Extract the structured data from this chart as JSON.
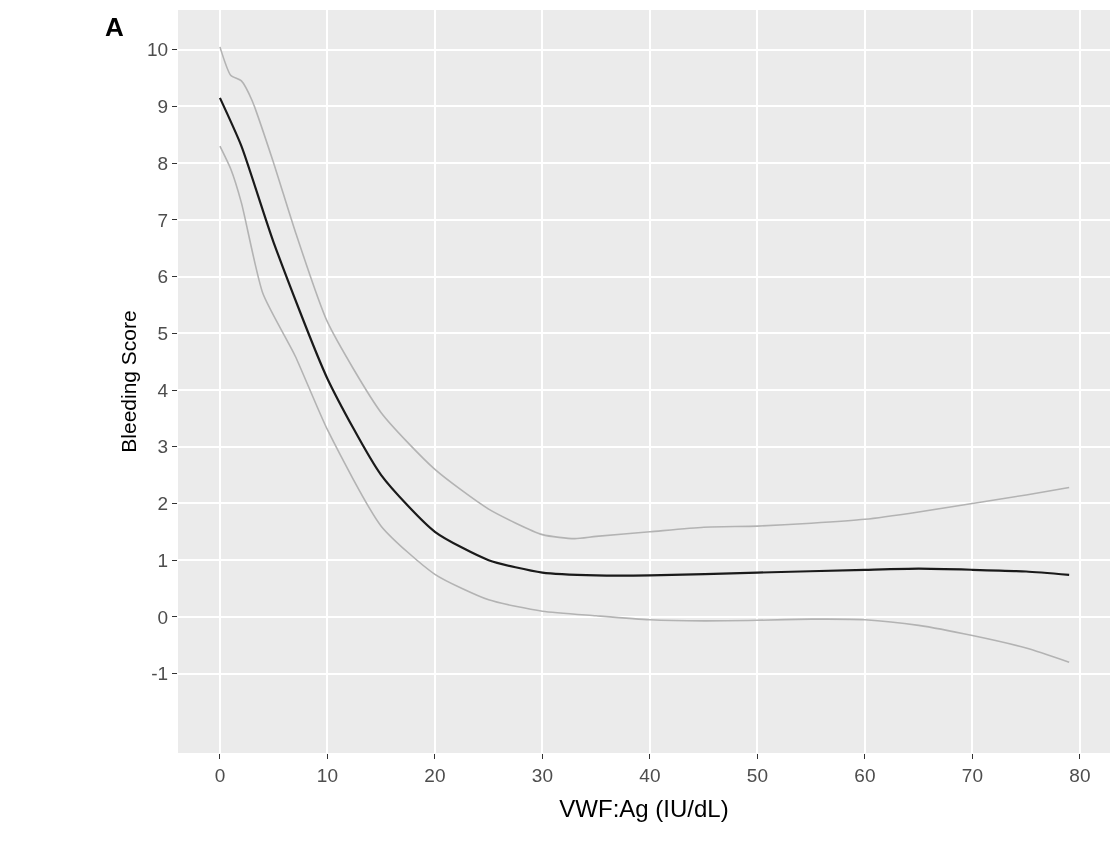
{
  "chart_data": {
    "type": "line",
    "xlabel": "VWF:Ag (IU/dL)",
    "ylabel": "Bleeding Score",
    "annotations": [
      "A"
    ],
    "series": [
      {
        "color": "#b3b3b3",
        "x": [
          0,
          1,
          2,
          3,
          5,
          7,
          10,
          15,
          20,
          25,
          30,
          33,
          35,
          40,
          45,
          50,
          55,
          60,
          65,
          70,
          75,
          79
        ],
        "values": [
          10.05,
          9.55,
          9.45,
          9.1,
          8.0,
          6.8,
          5.2,
          3.6,
          2.6,
          1.9,
          1.45,
          1.38,
          1.42,
          1.5,
          1.58,
          1.6,
          1.65,
          1.72,
          1.85,
          2.0,
          2.15,
          2.28
        ]
      },
      {
        "color": "#b3b3b3",
        "x": [
          0,
          1,
          2,
          4,
          7,
          10,
          15,
          20,
          25,
          30,
          35,
          40,
          45,
          50,
          55,
          60,
          65,
          70,
          75,
          79
        ],
        "values": [
          8.3,
          7.9,
          7.3,
          5.7,
          4.6,
          3.3,
          1.6,
          0.75,
          0.3,
          0.1,
          0.02,
          -0.05,
          -0.07,
          -0.06,
          -0.04,
          -0.05,
          -0.15,
          -0.33,
          -0.55,
          -0.8
        ]
      },
      {
        "color": "#1a1a1a",
        "x": [
          0,
          2,
          5,
          10,
          15,
          20,
          25,
          30,
          35,
          40,
          50,
          60,
          65,
          70,
          75,
          79
        ],
        "values": [
          9.15,
          8.3,
          6.6,
          4.2,
          2.5,
          1.5,
          1.0,
          0.78,
          0.73,
          0.73,
          0.78,
          0.83,
          0.85,
          0.83,
          0.8,
          0.74
        ]
      }
    ],
    "xlim": [
      -3.9,
      82.8
    ],
    "xticks": [
      0,
      10,
      20,
      30,
      40,
      50,
      60,
      70,
      80
    ],
    "ylim": [
      -2.4,
      10.7
    ],
    "yticks": [
      -1,
      0,
      1,
      2,
      3,
      4,
      5,
      6,
      7,
      8,
      9,
      10
    ],
    "grid": true,
    "marker": "none",
    "line_style": "solid"
  }
}
